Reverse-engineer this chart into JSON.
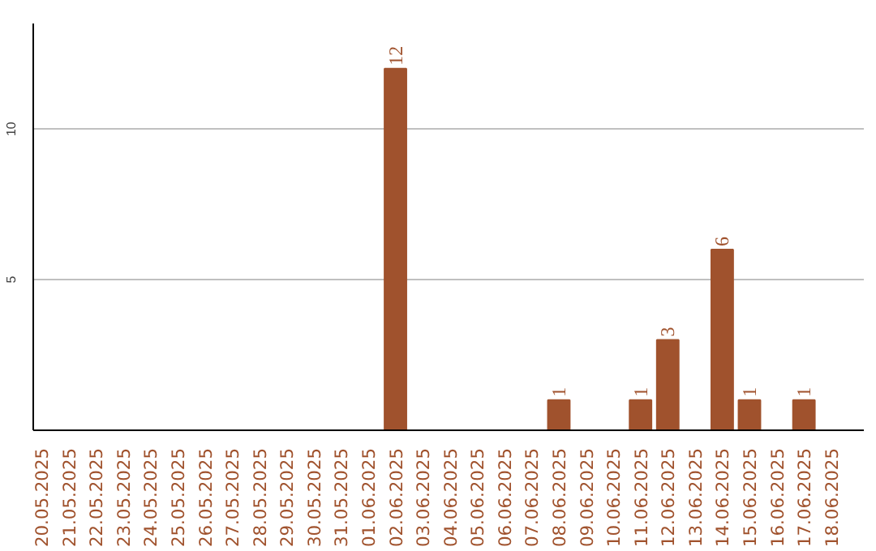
{
  "chart_data": {
    "type": "bar",
    "categories": [
      "20.05.2025",
      "21.05.2025",
      "22.05.2025",
      "23.05.2025",
      "24.05.2025",
      "25.05.2025",
      "26.05.2025",
      "27.05.2025",
      "28.05.2025",
      "29.05.2025",
      "30.05.2025",
      "31.05.2025",
      "01.06.2025",
      "02.06.2025",
      "03.06.2025",
      "04.06.2025",
      "05.06.2025",
      "06.06.2025",
      "07.06.2025",
      "08.06.2025",
      "09.06.2025",
      "10.06.2025",
      "11.06.2025",
      "12.06.2025",
      "13.06.2025",
      "14.06.2025",
      "15.06.2025",
      "16.06.2025",
      "17.06.2025",
      "18.06.2025"
    ],
    "values": [
      0,
      0,
      0,
      0,
      0,
      0,
      0,
      0,
      0,
      0,
      0,
      0,
      0,
      12,
      0,
      0,
      0,
      0,
      0,
      1,
      0,
      0,
      1,
      3,
      0,
      6,
      1,
      0,
      1,
      0
    ],
    "value_labels": [
      null,
      null,
      null,
      null,
      null,
      null,
      null,
      null,
      null,
      null,
      null,
      null,
      null,
      "12",
      null,
      null,
      null,
      null,
      null,
      "1",
      null,
      null,
      "1",
      "3",
      null,
      "6",
      "1",
      null,
      "1",
      null
    ],
    "color": "#a0522d",
    "ylim": [
      0,
      13.5
    ],
    "yticks": [
      5,
      10
    ],
    "grid": "y"
  }
}
